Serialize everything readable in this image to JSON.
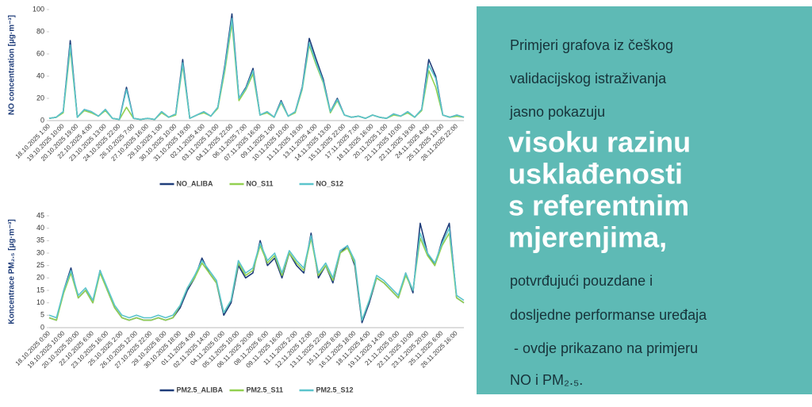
{
  "chart_data": [
    {
      "type": "line",
      "y_label": "NO concentration [µg·m⁻³]",
      "categories": [
        "18.10.2025 1:00",
        null,
        "19.10.2025 10:00",
        null,
        "20.10.2025 19:00",
        null,
        "22.10.2025 4:00",
        null,
        "23.10.2025 13:00",
        null,
        "24.10.2025 22:00",
        null,
        "26.10.2025 7:00",
        null,
        "27.10.2025 16:00",
        null,
        "29.10.2025 1:00",
        null,
        "30.10.2025 10:00",
        null,
        "31.10.2025 19:00",
        null,
        "02.11.2025 4:00",
        null,
        "03.11.2025 13:00",
        null,
        "04.11.2025 22:00",
        null,
        "06.11.2025 7:00",
        null,
        "07.11.2025 16:00",
        null,
        "09.11.2025 1:00",
        null,
        "10.11.2025 10:00",
        null,
        "11.11.2025 19:00",
        null,
        "13.11.2025 4:00",
        null,
        "14.11.2025 13:00",
        null,
        "15.11.2025 22:00",
        null,
        "17.11.2025 7:00",
        null,
        "18.11.2025 16:00",
        null,
        "20.11.2025 1:00",
        null,
        "21.11.2025 10:00",
        null,
        "22.11.2025 19:00",
        null,
        "24.11.2025 4:00",
        null,
        "25.11.2025 13:00",
        null,
        "26.11.2025 22:00",
        null
      ],
      "series": [
        {
          "name": "NO_ALIBA",
          "color": "#1f3d7a",
          "values": [
            2,
            3,
            8,
            72,
            3,
            10,
            8,
            4,
            10,
            2,
            1,
            30,
            2,
            1,
            2,
            1,
            8,
            3,
            6,
            55,
            2,
            5,
            8,
            4,
            12,
            50,
            96,
            20,
            30,
            47,
            5,
            8,
            3,
            18,
            4,
            8,
            30,
            74,
            55,
            37,
            8,
            20,
            5,
            3,
            4,
            2,
            5,
            3,
            2,
            6,
            4,
            8,
            3,
            10,
            55,
            40,
            5,
            3,
            5,
            3
          ]
        },
        {
          "name": "NO_S11",
          "color": "#92d050",
          "values": [
            2,
            3,
            7,
            65,
            3,
            9,
            7,
            4,
            9,
            2,
            1,
            12,
            2,
            1,
            2,
            1,
            7,
            3,
            5,
            50,
            2,
            5,
            7,
            4,
            11,
            45,
            88,
            18,
            28,
            42,
            5,
            7,
            3,
            16,
            4,
            7,
            28,
            68,
            50,
            34,
            7,
            18,
            5,
            3,
            4,
            2,
            5,
            3,
            2,
            5,
            4,
            7,
            3,
            9,
            45,
            30,
            5,
            3,
            4,
            3
          ]
        },
        {
          "name": "NO_S12",
          "color": "#5bc4cc",
          "values": [
            2,
            3,
            8,
            68,
            3,
            10,
            8,
            4,
            10,
            2,
            1,
            28,
            2,
            1,
            2,
            1,
            8,
            3,
            6,
            52,
            2,
            5,
            8,
            4,
            12,
            48,
            92,
            20,
            29,
            45,
            5,
            8,
            3,
            17,
            4,
            8,
            29,
            70,
            52,
            35,
            8,
            19,
            5,
            3,
            4,
            2,
            5,
            3,
            2,
            6,
            4,
            8,
            3,
            10,
            50,
            38,
            5,
            3,
            5,
            3
          ]
        }
      ],
      "ylim": [
        0,
        100
      ],
      "yticks": [
        0,
        20,
        40,
        60,
        80,
        100
      ],
      "grid": false,
      "legend": "bottom"
    },
    {
      "type": "line",
      "y_label": "Koncentrace PM₂.₅ [µg·m⁻³]",
      "categories": [
        "18.10.2025 0:00",
        null,
        "19.10.2025 10:00",
        null,
        "20.10.2025 20:00",
        null,
        "22.10.2025 6:00",
        null,
        "23.10.2025 16:00",
        null,
        "25.10.2025 2:00",
        null,
        "26.10.2025 12:00",
        null,
        "27.10.2025 22:00",
        null,
        "29.10.2025 8:00",
        null,
        "30.10.2025 18:00",
        null,
        "01.11.2025 4:00",
        null,
        "02.11.2025 14:00",
        null,
        "04.11.2025 0:00",
        null,
        "05.11.2025 10:00",
        null,
        "06.11.2025 20:00",
        null,
        "08.11.2025 6:00",
        null,
        "09.11.2025 16:00",
        null,
        "11.11.2025 2:00",
        null,
        "12.11.2025 12:00",
        null,
        "13.11.2025 22:00",
        null,
        "15.11.2025 8:00",
        null,
        "16.11.2025 18:00",
        null,
        "18.11.2025 4:00",
        null,
        "19.11.2025 14:00",
        null,
        "21.11.2025 0:00",
        null,
        "22.11.2025 10:00",
        null,
        "23.11.2025 20:00",
        null,
        "25.11.2025 6:00",
        null,
        "26.11.2025 16:00",
        null
      ],
      "series": [
        {
          "name": "PM2.5_ALIBA",
          "color": "#1f3d7a",
          "values": [
            4,
            3,
            15,
            24,
            12,
            15,
            10,
            23,
            15,
            8,
            4,
            3,
            4,
            3,
            3,
            4,
            3,
            4,
            8,
            15,
            20,
            28,
            22,
            18,
            5,
            10,
            25,
            20,
            22,
            35,
            25,
            28,
            20,
            30,
            25,
            22,
            38,
            20,
            25,
            18,
            30,
            33,
            25,
            2,
            10,
            20,
            18,
            15,
            12,
            22,
            14,
            42,
            30,
            25,
            35,
            42,
            12,
            10
          ]
        },
        {
          "name": "PM2.5_S11",
          "color": "#92d050",
          "values": [
            4,
            3,
            14,
            22,
            12,
            15,
            10,
            22,
            15,
            8,
            4,
            3,
            4,
            3,
            3,
            4,
            3,
            4,
            9,
            16,
            20,
            26,
            22,
            18,
            6,
            11,
            26,
            21,
            23,
            33,
            26,
            29,
            21,
            30,
            26,
            23,
            36,
            21,
            25,
            19,
            30,
            32,
            26,
            3,
            11,
            20,
            18,
            15,
            12,
            21,
            15,
            36,
            29,
            25,
            33,
            38,
            12,
            10
          ]
        },
        {
          "name": "PM2.5_S12",
          "color": "#5bc4cc",
          "values": [
            5,
            4,
            15,
            23,
            13,
            16,
            11,
            23,
            16,
            9,
            5,
            4,
            5,
            4,
            4,
            5,
            4,
            5,
            9,
            16,
            21,
            27,
            23,
            19,
            6,
            11,
            27,
            22,
            24,
            34,
            27,
            30,
            22,
            31,
            27,
            24,
            37,
            22,
            26,
            20,
            31,
            33,
            27,
            3,
            11,
            21,
            19,
            16,
            13,
            22,
            15,
            38,
            30,
            26,
            34,
            40,
            13,
            11
          ]
        }
      ],
      "ylim": [
        0,
        45
      ],
      "yticks": [
        0,
        5,
        10,
        15,
        20,
        25,
        30,
        35,
        40,
        45
      ],
      "grid": false,
      "legend": "bottom"
    }
  ],
  "text_panel": {
    "intro": [
      "Primjeri grafova iz češkog",
      "validacijskog istraživanja",
      "jasno pokazuju"
    ],
    "highlight": [
      "visoku razinu",
      "usklađenosti",
      "s referentnim",
      "mjerenjima,"
    ],
    "outro": [
      "potvrđujući pouzdane i",
      "dosljedne performanse uređaja",
      " - ovdje prikazano na primjeru",
      "NO i PM₂.₅."
    ]
  }
}
